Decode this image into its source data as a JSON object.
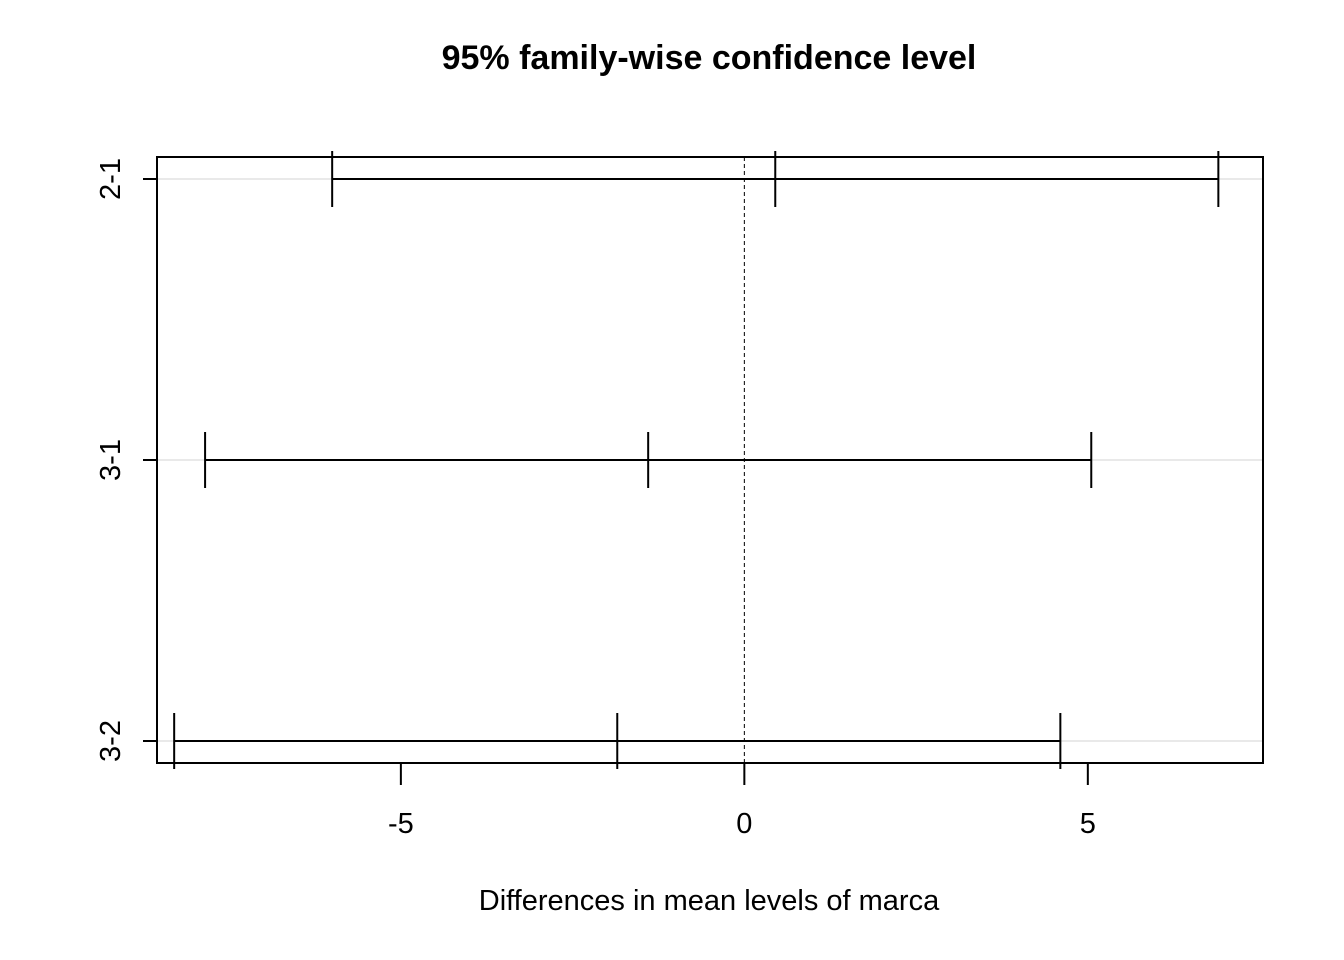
{
  "chart_data": {
    "type": "interval",
    "title": "95% family-wise confidence level",
    "xlabel": "Differences in mean levels of marca",
    "ylabel": "",
    "xlim": [
      -8.55,
      7.55
    ],
    "x_ticks": [
      -5,
      0,
      5
    ],
    "x_tick_labels": [
      "-5",
      "0",
      "5"
    ],
    "reference_line": 0,
    "grid": "horizontal",
    "intervals": [
      {
        "label": "2-1",
        "lwr": -6.0,
        "diff": 0.45,
        "upr": 6.9
      },
      {
        "label": "3-1",
        "lwr": -7.85,
        "diff": -1.4,
        "upr": 5.05
      },
      {
        "label": "3-2",
        "lwr": -8.3,
        "diff": -1.85,
        "upr": 4.6
      }
    ],
    "colors": {
      "line": "#000000",
      "grid": "#d3d3d3",
      "background": "#ffffff"
    }
  }
}
